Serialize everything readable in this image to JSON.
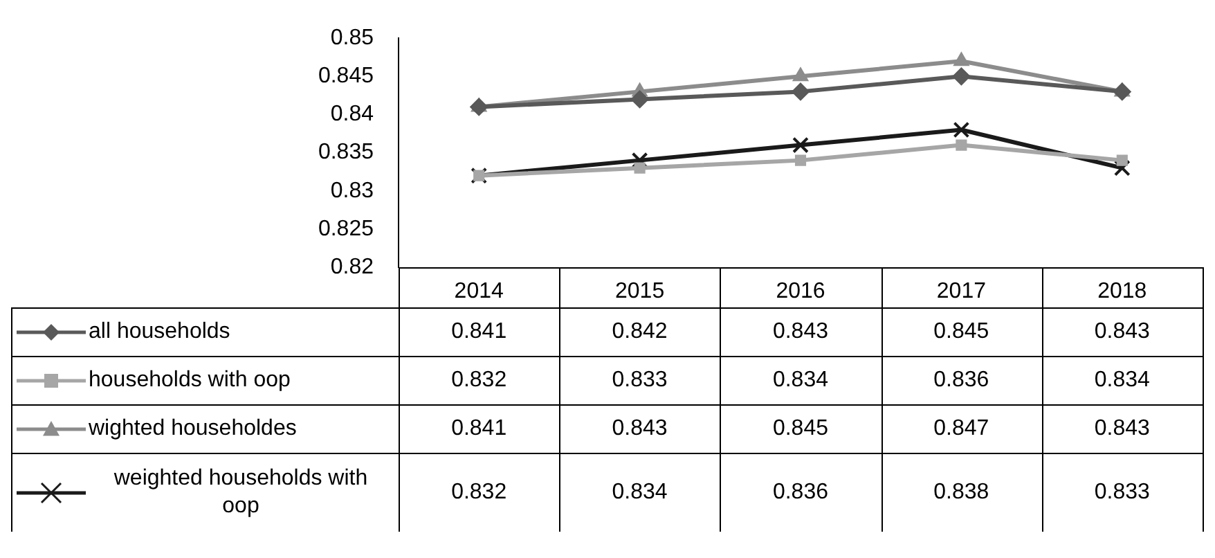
{
  "chart_data": {
    "type": "line",
    "categories": [
      "2014",
      "2015",
      "2016",
      "2017",
      "2018"
    ],
    "series": [
      {
        "name": "all households",
        "color": "#595959",
        "marker": "diamond",
        "values": [
          0.841,
          0.842,
          0.843,
          0.845,
          0.843
        ]
      },
      {
        "name": "households with oop",
        "color": "#a6a6a6",
        "marker": "square",
        "values": [
          0.832,
          0.833,
          0.834,
          0.836,
          0.834
        ]
      },
      {
        "name": "wighted householdes",
        "color": "#8c8c8c",
        "marker": "triangle",
        "values": [
          0.841,
          0.843,
          0.845,
          0.847,
          0.843
        ]
      },
      {
        "name": "weighted households with oop",
        "color": "#1a1a1a",
        "marker": "cross",
        "values": [
          0.832,
          0.834,
          0.836,
          0.838,
          0.833
        ]
      }
    ],
    "ylim": [
      0.82,
      0.85
    ],
    "yticks": [
      0.82,
      0.825,
      0.83,
      0.835,
      0.84,
      0.845,
      0.85
    ],
    "grid": false,
    "legend": "bottom",
    "data_labels": true
  }
}
